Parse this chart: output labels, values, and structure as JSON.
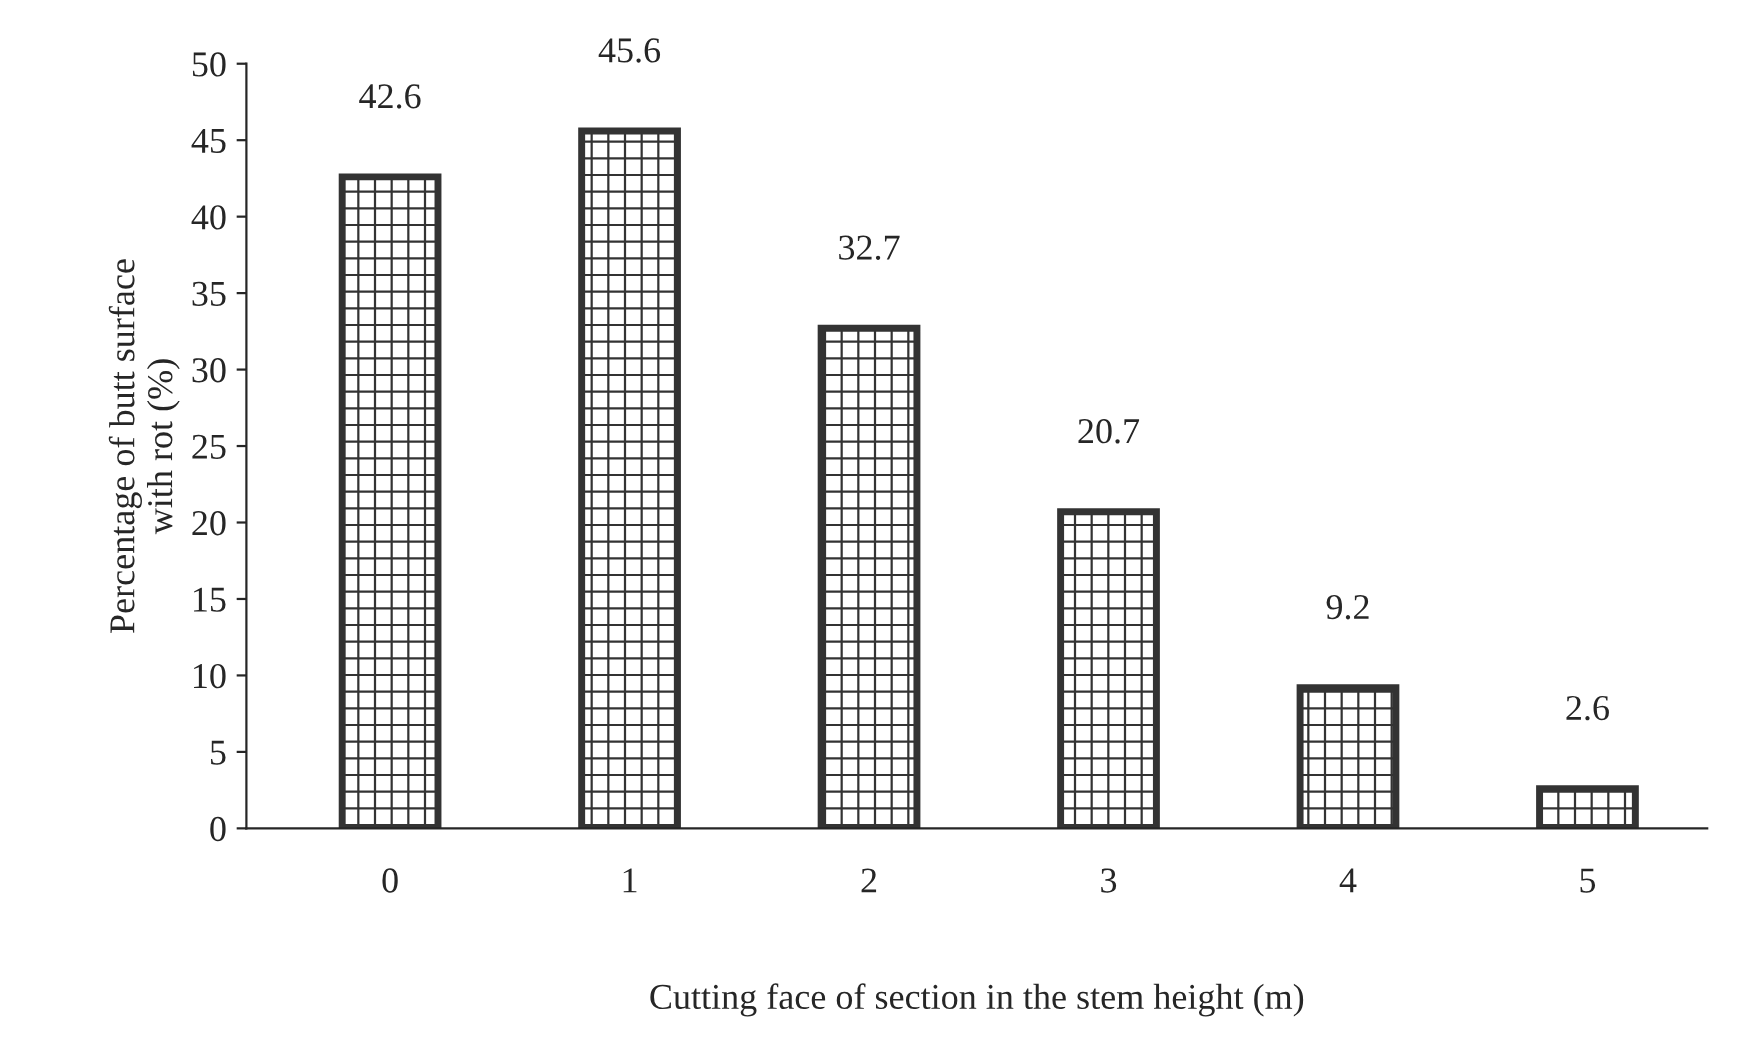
{
  "chart_data": {
    "type": "bar",
    "xlabel": "Cutting face of section in the stem height (m)",
    "ylabel": "Percentage of butt surface\nwith rot (%)",
    "categories": [
      "0",
      "1",
      "2",
      "3",
      "4",
      "5"
    ],
    "values": [
      42.6,
      45.6,
      32.7,
      20.7,
      9.2,
      2.6
    ],
    "color": "#333333",
    "ylim": [
      0,
      50
    ],
    "yticks": [
      0,
      5,
      10,
      15,
      20,
      25,
      30,
      35,
      40,
      45,
      50
    ],
    "grid": false,
    "data_labels": true
  }
}
